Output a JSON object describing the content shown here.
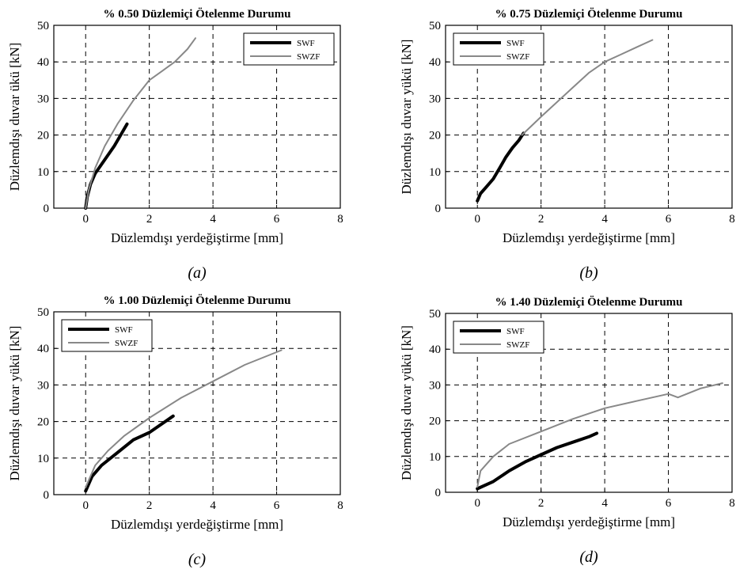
{
  "chart_data": [
    {
      "type": "line",
      "title": "% 0.50 Düzlemiçi Ötelenme Durumu",
      "xlabel": "Düzlemdışı yerdeğiştirme [mm]",
      "ylabel": "Düzlemdışı duvar ükü [kN]",
      "caption": "(a)",
      "xlim": [
        -1,
        8
      ],
      "ylim": [
        0,
        50
      ],
      "xticks": [
        0,
        2,
        4,
        6,
        8
      ],
      "yticks": [
        0,
        10,
        20,
        30,
        40,
        50
      ],
      "grid": true,
      "legend_position": "top-right",
      "series": [
        {
          "name": "SWF",
          "color": "#000000",
          "x": [
            0,
            0.05,
            0.15,
            0.3,
            0.5,
            0.7,
            0.9,
            1.1,
            1.3
          ],
          "y": [
            0,
            3,
            6.5,
            9.5,
            12,
            14.5,
            17,
            20,
            23
          ]
        },
        {
          "name": "SWZF",
          "color": "#888888",
          "x": [
            0,
            0.1,
            0.3,
            0.6,
            1.0,
            1.5,
            2.0,
            2.4,
            2.8,
            3.2,
            3.45
          ],
          "y": [
            0,
            5,
            11,
            17,
            23,
            29.5,
            35,
            37.5,
            40,
            43.5,
            46.5
          ]
        }
      ]
    },
    {
      "type": "line",
      "title": "% 0.75 Düzlemiçi Ötelenme Durumu",
      "xlabel": "Düzlemdışı yerdeğiştirme [mm]",
      "ylabel": "Düzlemdışı duvar yükü [kN]",
      "caption": "(b)",
      "xlim": [
        -1,
        8
      ],
      "ylim": [
        0,
        50
      ],
      "xticks": [
        0,
        2,
        4,
        6,
        8
      ],
      "yticks": [
        0,
        10,
        20,
        30,
        40,
        50
      ],
      "grid": true,
      "legend_position": "top-left",
      "series": [
        {
          "name": "SWF",
          "color": "#000000",
          "x": [
            0,
            0.1,
            0.3,
            0.5,
            0.7,
            0.9,
            1.1,
            1.3,
            1.45
          ],
          "y": [
            2,
            4,
            6,
            8,
            11,
            14,
            16.5,
            18.5,
            20.5
          ]
        },
        {
          "name": "SWZF",
          "color": "#888888",
          "x": [
            1.4,
            2.0,
            2.5,
            3.0,
            3.5,
            4.0,
            4.5,
            5.0,
            5.5
          ],
          "y": [
            20,
            25,
            29,
            33,
            37,
            40,
            42,
            44,
            46
          ]
        }
      ]
    },
    {
      "type": "line",
      "title": "% 1.00 Düzlemiçi Ötelenme Durumu",
      "xlabel": "Düzlemdışı yerdeğiştirme [mm]",
      "ylabel": "Düzlemdışı duvar yükü [kN]",
      "caption": "(c)",
      "xlim": [
        -1,
        8
      ],
      "ylim": [
        0,
        50
      ],
      "xticks": [
        0,
        2,
        4,
        6,
        8
      ],
      "yticks": [
        0,
        10,
        20,
        30,
        40,
        50
      ],
      "grid": true,
      "legend_position": "top-left",
      "series": [
        {
          "name": "SWF",
          "color": "#000000",
          "x": [
            0,
            0.2,
            0.5,
            1.0,
            1.5,
            2.0,
            2.5,
            2.75
          ],
          "y": [
            1,
            5,
            8,
            11.5,
            15,
            17,
            20,
            21.5
          ]
        },
        {
          "name": "SWZF",
          "color": "#888888",
          "x": [
            0,
            0.3,
            0.7,
            1.2,
            2.0,
            3.0,
            4.0,
            5.0,
            6.15
          ],
          "y": [
            2,
            8,
            12,
            16,
            21,
            26.5,
            31,
            35.5,
            39.5
          ]
        }
      ]
    },
    {
      "type": "line",
      "title": "% 1.40 Düzlemiçi Ötelenme Durumu",
      "xlabel": "Düzlemdışı yerdeğiştirme [mm]",
      "ylabel": "Düzlemdışı duvar yükü [kN]",
      "caption": "(d)",
      "xlim": [
        -1,
        8
      ],
      "ylim": [
        0,
        50
      ],
      "xticks": [
        0,
        2,
        4,
        6,
        8
      ],
      "yticks": [
        0,
        10,
        20,
        30,
        40,
        50
      ],
      "grid": true,
      "legend_position": "top-left",
      "series": [
        {
          "name": "SWF",
          "color": "#000000",
          "x": [
            0,
            0.5,
            1.0,
            1.5,
            2.0,
            2.5,
            3.0,
            3.5,
            3.75
          ],
          "y": [
            1,
            3,
            6,
            8.5,
            10.5,
            12.5,
            14,
            15.5,
            16.5
          ]
        },
        {
          "name": "SWZF",
          "color": "#888888",
          "x": [
            0,
            0.1,
            0.5,
            1.0,
            2.0,
            3.0,
            4.0,
            5.0,
            6.0,
            6.3,
            7.0,
            7.7
          ],
          "y": [
            1.5,
            6,
            10,
            13.5,
            17,
            20.5,
            23.5,
            25.5,
            27.5,
            26.5,
            29,
            30.5
          ]
        }
      ]
    }
  ]
}
